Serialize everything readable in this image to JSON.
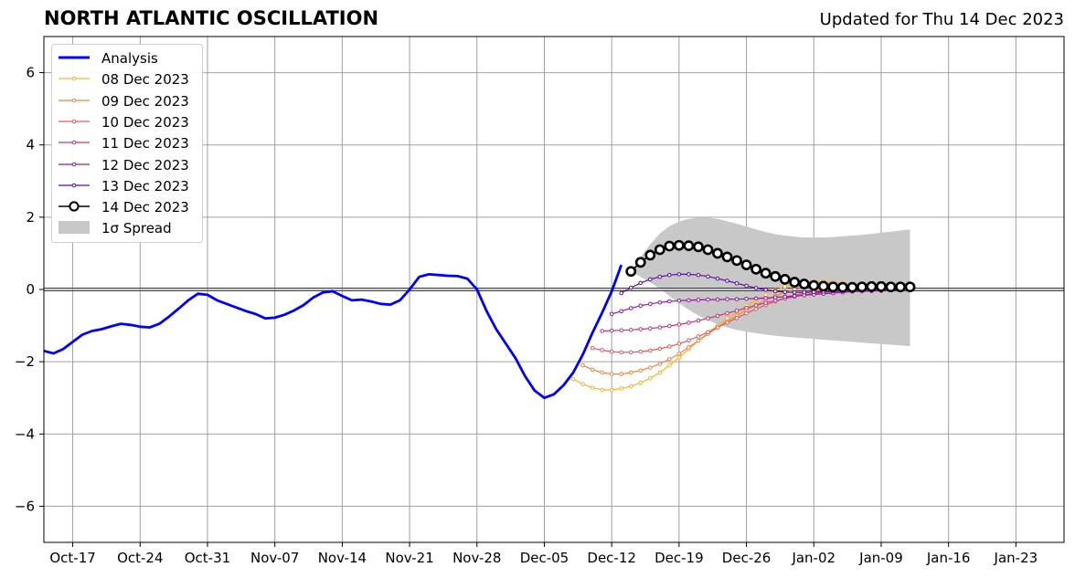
{
  "header": {
    "title": "NORTH ATLANTIC OSCILLATION",
    "updated": "Updated for Thu 14 Dec 2023"
  },
  "colors": {
    "analysis": "#0000ff",
    "spread": "#c8c8c8",
    "grid": "#a0a0a0",
    "forecasts": [
      "#fbb32f",
      "#f5843f",
      "#e05c5e",
      "#c0397c",
      "#9617a0",
      "#5c0fa0",
      "#000000"
    ]
  },
  "chart_data": {
    "type": "line",
    "title": "NORTH ATLANTIC OSCILLATION",
    "subtitle": "Updated for Thu 14 Dec 2023",
    "xlabel": "",
    "ylabel": "",
    "x_range": [
      "2023-10-14",
      "2024-01-28"
    ],
    "ylim": [
      -7,
      7
    ],
    "y_ticks": [
      6,
      4,
      2,
      0,
      -2,
      -4,
      -6
    ],
    "y_tick_labels": [
      "6",
      "4",
      "2",
      "0",
      "−2",
      "−4",
      "−6"
    ],
    "x_ticks": [
      "2023-10-17",
      "2023-10-24",
      "2023-10-31",
      "2023-11-07",
      "2023-11-14",
      "2023-11-21",
      "2023-11-28",
      "2023-12-05",
      "2023-12-12",
      "2023-12-19",
      "2023-12-26",
      "2024-01-02",
      "2024-01-09",
      "2024-01-16",
      "2024-01-23"
    ],
    "x_tick_labels": [
      "Oct-17",
      "Oct-24",
      "Oct-31",
      "Nov-07",
      "Nov-14",
      "Nov-21",
      "Nov-28",
      "Dec-05",
      "Dec-12",
      "Dec-19",
      "Dec-26",
      "Jan-02",
      "Jan-09",
      "Jan-16",
      "Jan-23"
    ],
    "grid": true,
    "legend_position": "top-left",
    "analysis": {
      "name": "Analysis",
      "x": [
        "2023-10-14",
        "2023-10-15",
        "2023-10-16",
        "2023-10-17",
        "2023-10-18",
        "2023-10-19",
        "2023-10-20",
        "2023-10-21",
        "2023-10-22",
        "2023-10-23",
        "2023-10-24",
        "2023-10-25",
        "2023-10-26",
        "2023-10-27",
        "2023-10-28",
        "2023-10-29",
        "2023-10-30",
        "2023-10-31",
        "2023-11-01",
        "2023-11-02",
        "2023-11-03",
        "2023-11-04",
        "2023-11-05",
        "2023-11-06",
        "2023-11-07",
        "2023-11-08",
        "2023-11-09",
        "2023-11-10",
        "2023-11-11",
        "2023-11-12",
        "2023-11-13",
        "2023-11-14",
        "2023-11-15",
        "2023-11-16",
        "2023-11-17",
        "2023-11-18",
        "2023-11-19",
        "2023-11-20",
        "2023-11-21",
        "2023-11-22",
        "2023-11-23",
        "2023-11-24",
        "2023-11-25",
        "2023-11-26",
        "2023-11-27",
        "2023-11-28",
        "2023-11-29",
        "2023-11-30",
        "2023-12-01",
        "2023-12-02",
        "2023-12-03",
        "2023-12-04",
        "2023-12-05",
        "2023-12-06",
        "2023-12-07",
        "2023-12-08",
        "2023-12-09",
        "2023-12-10",
        "2023-12-11",
        "2023-12-12",
        "2023-12-13"
      ],
      "values": [
        -1.7,
        -1.77,
        -1.65,
        -1.45,
        -1.25,
        -1.15,
        -1.1,
        -1.02,
        -0.95,
        -0.98,
        -1.03,
        -1.05,
        -0.95,
        -0.75,
        -0.53,
        -0.3,
        -0.12,
        -0.15,
        -0.3,
        -0.4,
        -0.5,
        -0.6,
        -0.68,
        -0.8,
        -0.78,
        -0.7,
        -0.58,
        -0.43,
        -0.22,
        -0.08,
        -0.05,
        -0.18,
        -0.3,
        -0.28,
        -0.33,
        -0.4,
        -0.42,
        -0.3,
        0.0,
        0.35,
        0.42,
        0.4,
        0.38,
        0.37,
        0.3,
        0.0,
        -0.6,
        -1.1,
        -1.5,
        -1.9,
        -2.4,
        -2.8,
        -3.0,
        -2.9,
        -2.65,
        -2.3,
        -1.8,
        -1.2,
        -0.65,
        -0.05,
        0.68
      ]
    },
    "series": [
      {
        "name": "08 Dec 2023",
        "start": "2023-12-08",
        "values": [
          -2.48,
          -2.62,
          -2.72,
          -2.78,
          -2.78,
          -2.74,
          -2.68,
          -2.58,
          -2.46,
          -2.3,
          -2.1,
          -1.88,
          -1.65,
          -1.42,
          -1.2,
          -1.0,
          -0.8,
          -0.62,
          -0.45,
          -0.3,
          -0.15,
          -0.02,
          0.08,
          0.15,
          0.2,
          0.22,
          0.22,
          0.2,
          0.18,
          0.14
        ]
      },
      {
        "name": "09 Dec 2023",
        "start": "2023-12-09",
        "values": [
          -2.1,
          -2.22,
          -2.3,
          -2.34,
          -2.34,
          -2.3,
          -2.24,
          -2.16,
          -2.06,
          -1.93,
          -1.78,
          -1.6,
          -1.42,
          -1.23,
          -1.05,
          -0.88,
          -0.72,
          -0.57,
          -0.43,
          -0.3,
          -0.18,
          -0.08,
          0.0,
          0.06,
          0.1,
          0.12,
          0.12,
          0.1,
          0.08,
          0.05
        ]
      },
      {
        "name": "10 Dec 2023",
        "start": "2023-12-10",
        "values": [
          -1.62,
          -1.68,
          -1.72,
          -1.74,
          -1.74,
          -1.72,
          -1.69,
          -1.64,
          -1.58,
          -1.5,
          -1.41,
          -1.3,
          -1.18,
          -1.05,
          -0.92,
          -0.79,
          -0.66,
          -0.54,
          -0.43,
          -0.33,
          -0.24,
          -0.16,
          -0.1,
          -0.05,
          -0.02,
          0.0,
          0.0,
          -0.01,
          -0.02,
          -0.03
        ]
      },
      {
        "name": "11 Dec 2023",
        "start": "2023-12-11",
        "values": [
          -1.15,
          -1.14,
          -1.13,
          -1.12,
          -1.1,
          -1.08,
          -1.05,
          -1.01,
          -0.97,
          -0.92,
          -0.86,
          -0.8,
          -0.73,
          -0.66,
          -0.59,
          -0.51,
          -0.44,
          -0.37,
          -0.31,
          -0.25,
          -0.2,
          -0.15,
          -0.11,
          -0.08,
          -0.06,
          -0.05,
          -0.04,
          -0.04,
          -0.04,
          -0.04
        ]
      },
      {
        "name": "12 Dec 2023",
        "start": "2023-12-12",
        "values": [
          -0.68,
          -0.6,
          -0.52,
          -0.45,
          -0.4,
          -0.36,
          -0.33,
          -0.31,
          -0.3,
          -0.29,
          -0.28,
          -0.28,
          -0.27,
          -0.27,
          -0.26,
          -0.25,
          -0.24,
          -0.22,
          -0.2,
          -0.18,
          -0.16,
          -0.14,
          -0.12,
          -0.1,
          -0.08,
          -0.06,
          -0.05,
          -0.04,
          -0.03,
          -0.02
        ]
      },
      {
        "name": "13 Dec 2023",
        "start": "2023-12-13",
        "values": [
          -0.1,
          0.05,
          0.18,
          0.28,
          0.35,
          0.4,
          0.42,
          0.42,
          0.4,
          0.36,
          0.3,
          0.24,
          0.17,
          0.1,
          0.04,
          -0.01,
          -0.05,
          -0.07,
          -0.08,
          -0.08,
          -0.07,
          -0.06,
          -0.05,
          -0.04,
          -0.03,
          -0.02,
          -0.02,
          -0.02,
          -0.02,
          -0.02
        ]
      },
      {
        "name": "14 Dec 2023",
        "start": "2023-12-14",
        "values": [
          0.5,
          0.75,
          0.95,
          1.1,
          1.2,
          1.22,
          1.21,
          1.18,
          1.1,
          1.0,
          0.9,
          0.8,
          0.68,
          0.56,
          0.45,
          0.36,
          0.28,
          0.2,
          0.15,
          0.11,
          0.09,
          0.07,
          0.06,
          0.06,
          0.07,
          0.08,
          0.08,
          0.07,
          0.07,
          0.07
        ]
      }
    ],
    "spread": {
      "name": "1σ Spread",
      "start": "2023-12-14",
      "upper": [
        0.5,
        0.9,
        1.25,
        1.55,
        1.75,
        1.88,
        1.95,
        1.99,
        1.99,
        1.95,
        1.89,
        1.82,
        1.74,
        1.66,
        1.59,
        1.53,
        1.49,
        1.46,
        1.44,
        1.44,
        1.44,
        1.45,
        1.47,
        1.49,
        1.51,
        1.54,
        1.57,
        1.6,
        1.63,
        1.66
      ],
      "lower": [
        0.5,
        0.35,
        0.2,
        0.02,
        -0.18,
        -0.38,
        -0.56,
        -0.72,
        -0.85,
        -0.96,
        -1.05,
        -1.12,
        -1.17,
        -1.21,
        -1.25,
        -1.28,
        -1.31,
        -1.33,
        -1.35,
        -1.37,
        -1.39,
        -1.41,
        -1.43,
        -1.45,
        -1.47,
        -1.49,
        -1.51,
        -1.53,
        -1.55,
        -1.57
      ]
    }
  },
  "legend": {
    "items": [
      {
        "label": "Analysis",
        "kind": "thick-line",
        "color": "#0000ff"
      },
      {
        "label": "08 Dec 2023",
        "kind": "dot-line",
        "color": "#fbb32f"
      },
      {
        "label": "09 Dec 2023",
        "kind": "dot-line",
        "color": "#f5843f"
      },
      {
        "label": "10 Dec 2023",
        "kind": "dot-line",
        "color": "#e05c5e"
      },
      {
        "label": "11 Dec 2023",
        "kind": "dot-line",
        "color": "#c0397c"
      },
      {
        "label": "12 Dec 2023",
        "kind": "dot-line",
        "color": "#9617a0"
      },
      {
        "label": "13 Dec 2023",
        "kind": "dot-line",
        "color": "#5c0fa0"
      },
      {
        "label": "14 Dec 2023",
        "kind": "circle-line",
        "color": "#000000"
      },
      {
        "label": "1σ Spread",
        "kind": "patch",
        "color": "#c8c8c8"
      }
    ]
  }
}
